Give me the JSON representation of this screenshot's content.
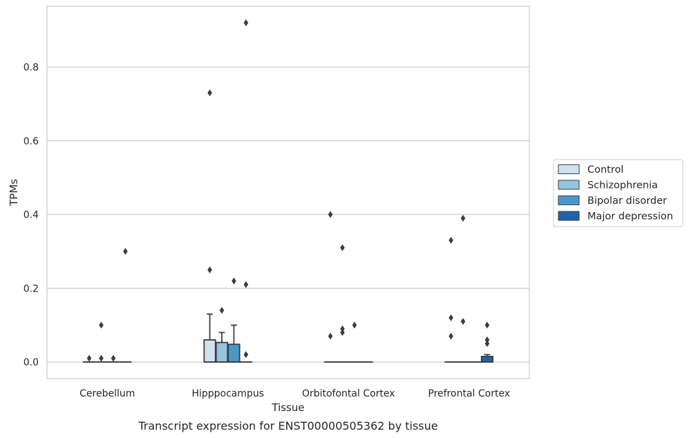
{
  "caption": "Transcript expression for ENST00000505362 by tissue",
  "chart_data": {
    "type": "box",
    "xlabel": "Tissue",
    "ylabel": "TPMs",
    "ylim": [
      -0.045,
      0.965
    ],
    "yticks": [
      "0.0",
      "0.2",
      "0.4",
      "0.6",
      "0.8"
    ],
    "ytick_values": [
      0.0,
      0.2,
      0.4,
      0.6,
      0.8
    ],
    "grid": "horizontal",
    "legend_position": "right",
    "categories": [
      "Cerebellum",
      "Hipppocampus",
      "Orbitofontal Cortex",
      "Prefrontal Cortex"
    ],
    "series": [
      {
        "name": "Control",
        "color": "#d0e1f2",
        "boxes": [
          {
            "q1": 0,
            "median": 0,
            "q3": 0,
            "whisker_low": 0,
            "whisker_high": 0,
            "outliers": [
              0.01
            ]
          },
          {
            "q1": 0,
            "median": 0,
            "q3": 0.06,
            "whisker_low": 0,
            "whisker_high": 0.13,
            "outliers": [
              0.73,
              0.25
            ]
          },
          {
            "q1": 0,
            "median": 0,
            "q3": 0,
            "whisker_low": 0,
            "whisker_high": 0,
            "outliers": [
              0.4,
              0.07
            ]
          },
          {
            "q1": 0,
            "median": 0,
            "q3": 0,
            "whisker_low": 0,
            "whisker_high": 0,
            "outliers": [
              0.33,
              0.12,
              0.07
            ]
          }
        ]
      },
      {
        "name": "Schizophrenia",
        "color": "#94c4df",
        "boxes": [
          {
            "q1": 0,
            "median": 0,
            "q3": 0,
            "whisker_low": 0,
            "whisker_high": 0,
            "outliers": [
              0.1,
              0.01
            ]
          },
          {
            "q1": 0,
            "median": 0,
            "q3": 0.053,
            "whisker_low": 0,
            "whisker_high": 0.08,
            "outliers": [
              0.14
            ]
          },
          {
            "q1": 0,
            "median": 0,
            "q3": 0,
            "whisker_low": 0,
            "whisker_high": 0,
            "outliers": [
              0.31,
              0.09,
              0.08
            ]
          },
          {
            "q1": 0,
            "median": 0,
            "q3": 0,
            "whisker_low": 0,
            "whisker_high": 0,
            "outliers": [
              0.39,
              0.11
            ]
          }
        ]
      },
      {
        "name": "Bipolar disorder",
        "color": "#4a98c9",
        "boxes": [
          {
            "q1": 0,
            "median": 0,
            "q3": 0,
            "whisker_low": 0,
            "whisker_high": 0,
            "outliers": [
              0.01
            ]
          },
          {
            "q1": 0,
            "median": 0,
            "q3": 0.048,
            "whisker_low": 0,
            "whisker_high": 0.1,
            "outliers": [
              0.22
            ]
          },
          {
            "q1": 0,
            "median": 0,
            "q3": 0,
            "whisker_low": 0,
            "whisker_high": 0,
            "outliers": [
              0.1
            ]
          },
          {
            "q1": 0,
            "median": 0,
            "q3": 0,
            "whisker_low": 0,
            "whisker_high": 0,
            "outliers": []
          }
        ]
      },
      {
        "name": "Major depression",
        "color": "#2163aa",
        "boxes": [
          {
            "q1": 0,
            "median": 0,
            "q3": 0,
            "whisker_low": 0,
            "whisker_high": 0,
            "outliers": [
              0.3
            ]
          },
          {
            "q1": 0,
            "median": 0,
            "q3": 0,
            "whisker_low": 0,
            "whisker_high": 0,
            "outliers": [
              0.92,
              0.21,
              0.02
            ]
          },
          {
            "q1": 0,
            "median": 0,
            "q3": 0,
            "whisker_low": 0,
            "whisker_high": 0,
            "outliers": []
          },
          {
            "q1": 0,
            "median": 0,
            "q3": 0.015,
            "whisker_low": 0,
            "whisker_high": 0.02,
            "outliers": [
              0.1,
              0.06,
              0.05
            ]
          }
        ]
      }
    ]
  }
}
